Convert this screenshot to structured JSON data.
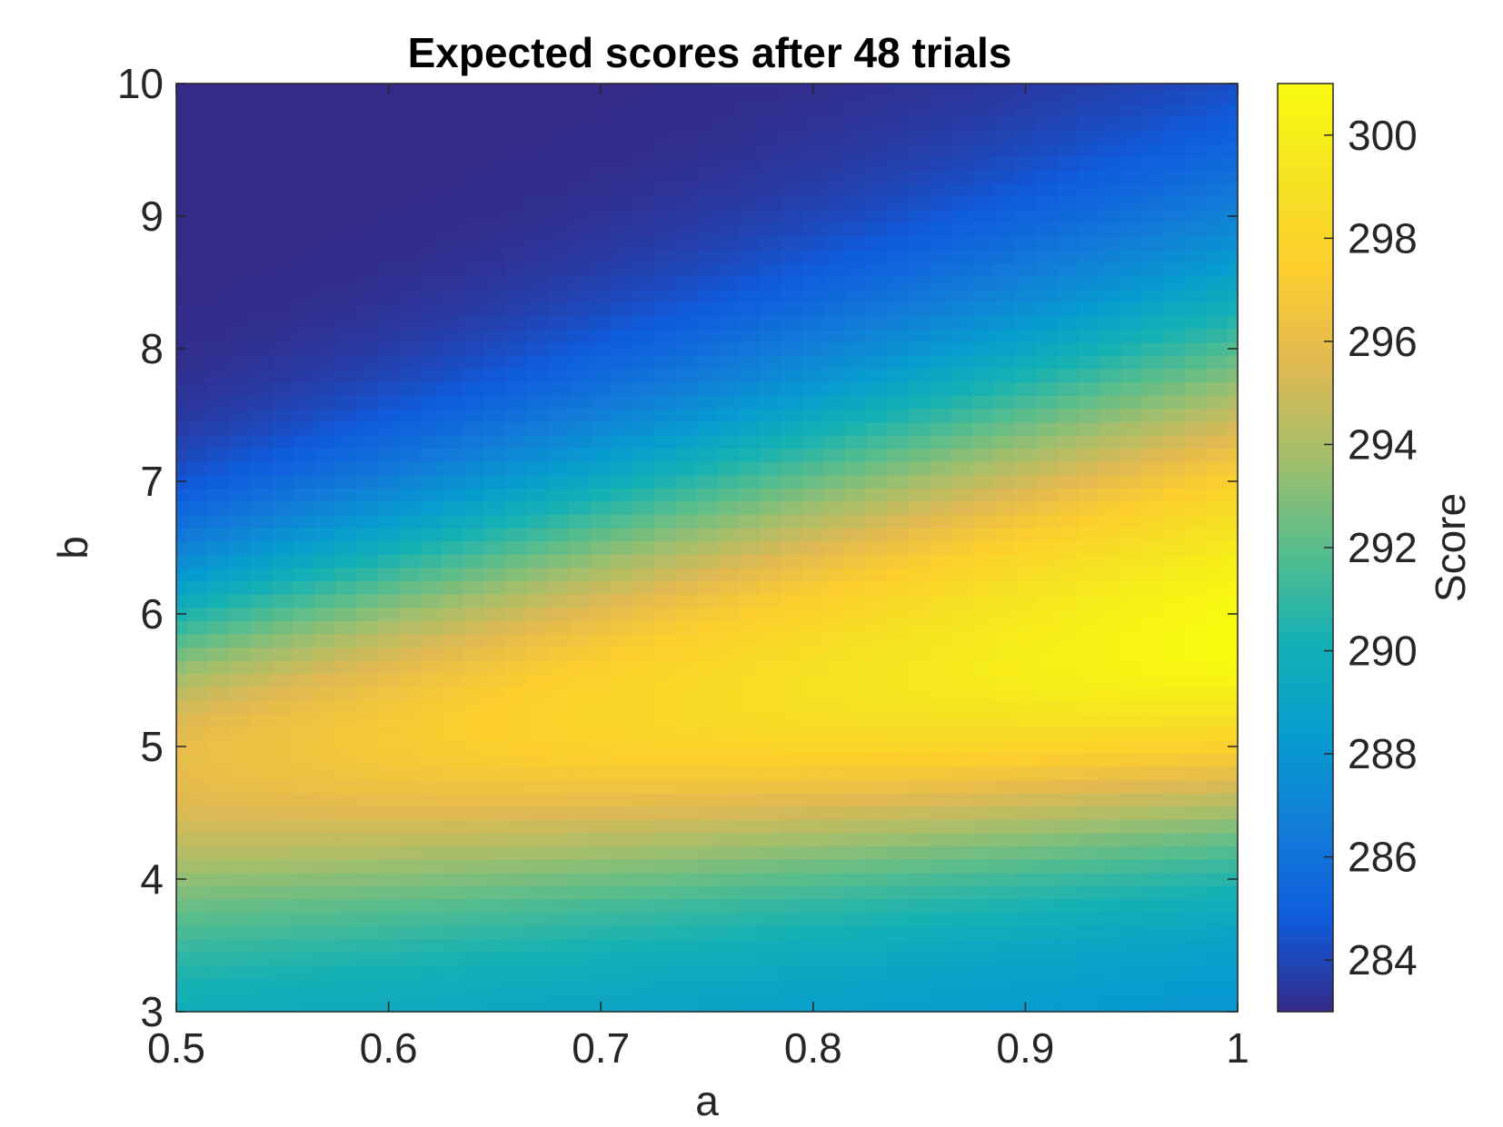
{
  "chart_data": {
    "type": "heatmap",
    "title": "Expected scores after 48 trials",
    "xlabel": "a",
    "ylabel": "b",
    "colorbar_label": "Score",
    "xlim": [
      0.5,
      1
    ],
    "ylim": [
      3,
      10
    ],
    "x_ticks": [
      0.5,
      0.6,
      0.7,
      0.8,
      0.9,
      1
    ],
    "x_tick_labels": [
      "0.5",
      "0.6",
      "0.7",
      "0.8",
      "0.9",
      "1"
    ],
    "y_ticks": [
      3,
      4,
      5,
      6,
      7,
      8,
      9,
      10
    ],
    "y_tick_labels": [
      "3",
      "4",
      "5",
      "6",
      "7",
      "8",
      "9",
      "10"
    ],
    "color_range": [
      283,
      301
    ],
    "colorbar_ticks": [
      284,
      286,
      288,
      290,
      292,
      294,
      296,
      298,
      300
    ],
    "colorbar_tick_labels": [
      "284",
      "286",
      "288",
      "290",
      "292",
      "294",
      "296",
      "298",
      "300"
    ],
    "colormap": "parula",
    "grid": false,
    "model": {
      "description_values": "score(a,b): ridge peak along b = 4.9 + 0.9*(a-0.5)/0.5",
      "peak_score": 301,
      "peak_location": {
        "a": 1.0,
        "b": 5.8
      },
      "low_region_score": 283,
      "low_region_location": {
        "a": 0.5,
        "b": 10
      },
      "bottom_edge_score": 289
    }
  }
}
